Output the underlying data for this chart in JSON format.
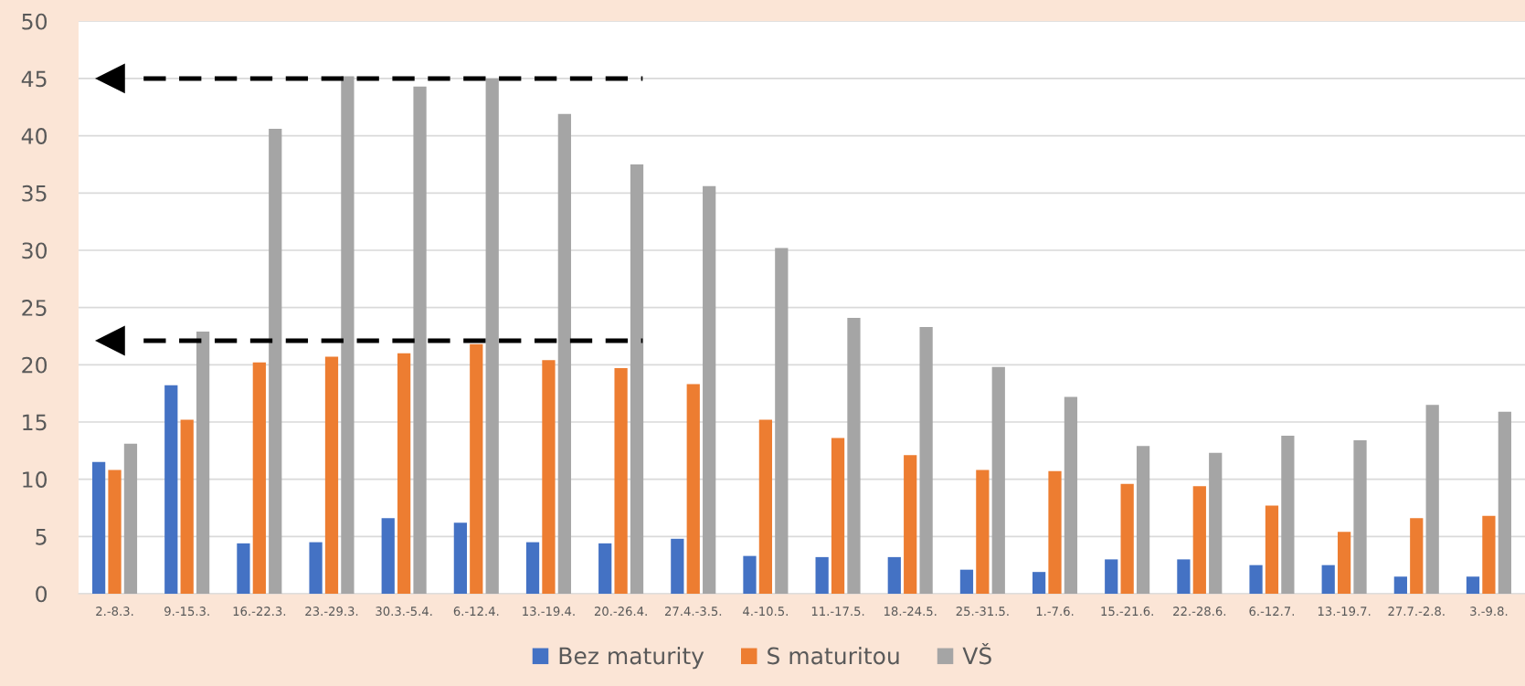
{
  "chart_data": {
    "type": "bar",
    "categories": [
      "2.-8.3.",
      "9.-15.3.",
      "16.-22.3.",
      "23.-29.3.",
      "30.3.-5.4.",
      "6.-12.4.",
      "13.-19.4.",
      "20.-26.4.",
      "27.4.-3.5.",
      "4.-10.5.",
      "11.-17.5.",
      "18.-24.5.",
      "25.-31.5.",
      "1.-7.6.",
      "15.-21.6.",
      "22.-28.6.",
      "6.-12.7.",
      "13.-19.7.",
      "27.7.-2.8.",
      "3.-9.8."
    ],
    "series": [
      {
        "name": "Bez maturity",
        "color": "#4472c4",
        "values": [
          11.5,
          18.2,
          4.4,
          4.5,
          6.6,
          6.2,
          4.5,
          4.4,
          4.8,
          3.3,
          3.2,
          3.2,
          2.1,
          1.9,
          3.0,
          3.0,
          2.5,
          2.5,
          1.5,
          1.5
        ]
      },
      {
        "name": "S maturitou",
        "color": "#ed7d31",
        "values": [
          10.8,
          15.2,
          20.2,
          20.7,
          21.0,
          21.8,
          20.4,
          19.7,
          18.3,
          15.2,
          13.6,
          12.1,
          10.8,
          10.7,
          9.6,
          9.4,
          7.7,
          5.4,
          6.6,
          6.8
        ]
      },
      {
        "name": "VŠ",
        "color": "#a5a5a5",
        "values": [
          13.1,
          22.9,
          40.6,
          45.2,
          44.3,
          45.0,
          41.9,
          37.5,
          35.6,
          30.2,
          24.1,
          23.3,
          19.8,
          17.2,
          12.9,
          12.3,
          13.8,
          13.4,
          16.5,
          15.9
        ]
      }
    ],
    "ylim": [
      0,
      50
    ],
    "yticks": [
      0,
      5,
      10,
      15,
      20,
      25,
      30,
      35,
      40,
      45,
      50
    ],
    "grid": "y",
    "legend": "bottom",
    "ref_lines": [
      {
        "axis": "y",
        "value": 45,
        "color": "#000000",
        "line_style": "dashed"
      },
      {
        "axis": "y",
        "value": 22.1,
        "color": "#000000",
        "line_style": "dashed"
      }
    ]
  }
}
